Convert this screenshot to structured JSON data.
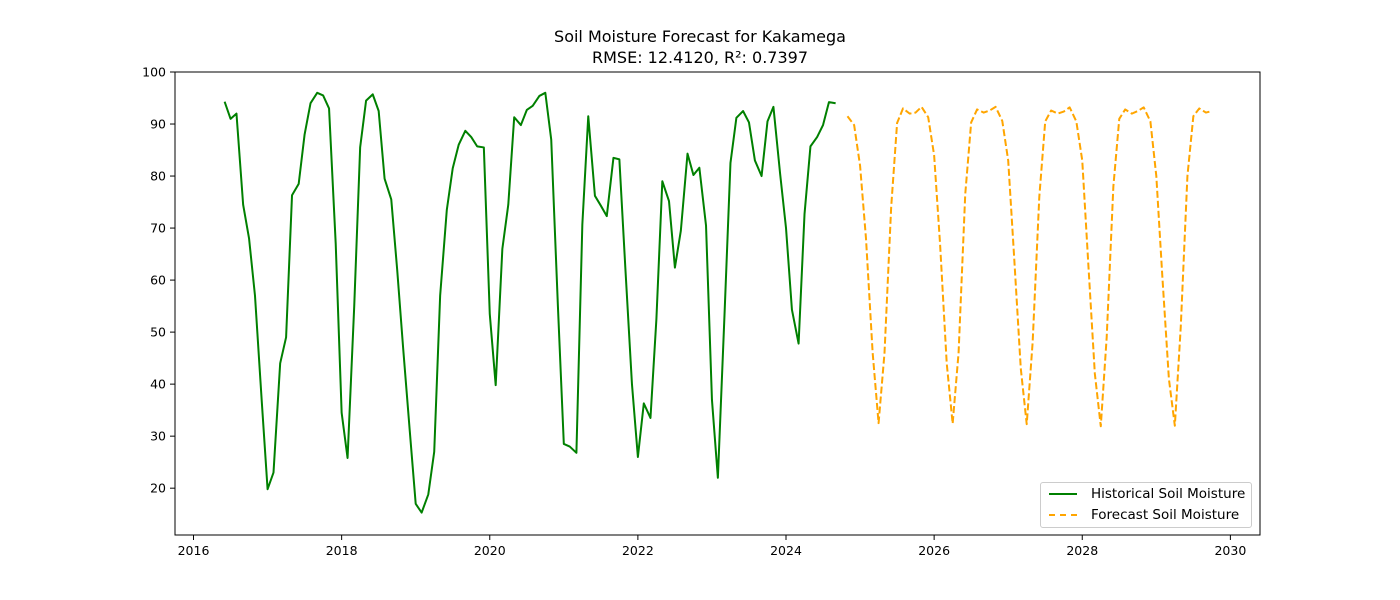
{
  "chart_data": {
    "type": "line",
    "title": "Soil Moisture Forecast for Kakamega",
    "subtitle": "RMSE: 12.4120, R²: 0.7397",
    "xlabel": "",
    "ylabel": "",
    "xlim": [
      2015.75,
      2030.4
    ],
    "ylim": [
      11,
      100
    ],
    "x_ticks": [
      2016,
      2018,
      2020,
      2022,
      2024,
      2026,
      2028,
      2030
    ],
    "y_ticks": [
      20,
      30,
      40,
      50,
      60,
      70,
      80,
      90,
      100
    ],
    "grid": false,
    "legend_position": "lower-right",
    "series": [
      {
        "name": "Historical Soil Moisture",
        "color": "#008000",
        "style": "solid",
        "x": [
          2016.42,
          2016.5,
          2016.58,
          2016.67,
          2016.75,
          2016.83,
          2016.92,
          2017.0,
          2017.08,
          2017.17,
          2017.25,
          2017.33,
          2017.42,
          2017.5,
          2017.58,
          2017.67,
          2017.75,
          2017.83,
          2017.92,
          2018.0,
          2018.08,
          2018.17,
          2018.25,
          2018.33,
          2018.42,
          2018.5,
          2018.58,
          2018.67,
          2018.75,
          2018.83,
          2018.92,
          2019.0,
          2019.08,
          2019.17,
          2019.25,
          2019.33,
          2019.42,
          2019.5,
          2019.58,
          2019.67,
          2019.75,
          2019.83,
          2019.92,
          2020.0,
          2020.08,
          2020.17,
          2020.25,
          2020.33,
          2020.42,
          2020.5,
          2020.58,
          2020.67,
          2020.75,
          2020.83,
          2020.92,
          2021.0,
          2021.08,
          2021.17,
          2021.25,
          2021.33,
          2021.42,
          2021.5,
          2021.58,
          2021.67,
          2021.75,
          2021.83,
          2021.92,
          2022.0,
          2022.08,
          2022.17,
          2022.25,
          2022.33,
          2022.42,
          2022.5,
          2022.58,
          2022.67,
          2022.75,
          2022.83,
          2022.92,
          2023.0,
          2023.08,
          2023.17,
          2023.25,
          2023.33,
          2023.42,
          2023.5,
          2023.58,
          2023.67,
          2023.75,
          2023.83,
          2023.92,
          2024.0,
          2024.08,
          2024.17,
          2024.25,
          2024.33,
          2024.42,
          2024.5,
          2024.58,
          2024.67
        ],
        "y": [
          94.3,
          91.0,
          92.0,
          74.5,
          68.0,
          57.0,
          37.0,
          19.8,
          23.0,
          44.0,
          49.0,
          76.3,
          78.5,
          88.0,
          94.0,
          96.0,
          95.5,
          93.0,
          67.0,
          34.5,
          25.8,
          55.0,
          85.5,
          94.5,
          95.7,
          92.5,
          79.5,
          75.5,
          62.0,
          47.0,
          31.0,
          17.0,
          15.3,
          18.8,
          27.0,
          57.0,
          73.5,
          81.5,
          86.0,
          88.7,
          87.5,
          85.7,
          85.5,
          53.5,
          39.8,
          66.0,
          74.5,
          91.3,
          89.8,
          92.7,
          93.5,
          95.4,
          96.0,
          87.0,
          55.0,
          28.5,
          28.0,
          26.8,
          70.7,
          91.5,
          76.2,
          74.3,
          72.3,
          83.5,
          83.2,
          62.5,
          40.0,
          26.0,
          36.3,
          33.5,
          52.5,
          79.0,
          75.2,
          62.4,
          69.5,
          84.3,
          80.2,
          81.6,
          70.5,
          37.0,
          22.0,
          53.5,
          82.5,
          91.2,
          92.5,
          90.3,
          83.0,
          80.0,
          90.5,
          93.3,
          80.5,
          70.0,
          54.3,
          47.8,
          72.7,
          85.7,
          87.5,
          89.8,
          94.2,
          94.0
        ]
      },
      {
        "name": "Forecast Soil Moisture",
        "color": "#ffa500",
        "style": "dashed",
        "x": [
          2024.83,
          2024.92,
          2025.0,
          2025.08,
          2025.17,
          2025.25,
          2025.33,
          2025.42,
          2025.5,
          2025.58,
          2025.67,
          2025.75,
          2025.83,
          2025.92,
          2026.0,
          2026.08,
          2026.17,
          2026.25,
          2026.33,
          2026.42,
          2026.5,
          2026.58,
          2026.67,
          2026.75,
          2026.83,
          2026.92,
          2027.0,
          2027.08,
          2027.17,
          2027.25,
          2027.33,
          2027.42,
          2027.5,
          2027.58,
          2027.67,
          2027.75,
          2027.83,
          2027.92,
          2028.0,
          2028.08,
          2028.17,
          2028.25,
          2028.33,
          2028.42,
          2028.5,
          2028.58,
          2028.67,
          2028.75,
          2028.83,
          2028.92,
          2029.0,
          2029.08,
          2029.17,
          2029.25,
          2029.33,
          2029.42,
          2029.5,
          2029.58,
          2029.67,
          2029.75
        ],
        "y": [
          91.5,
          89.8,
          82.0,
          68.0,
          46.0,
          32.5,
          46.0,
          74.0,
          90.2,
          93.0,
          92.0,
          92.2,
          93.3,
          91.3,
          84.0,
          67.0,
          44.0,
          32.4,
          46.0,
          76.5,
          90.3,
          92.8,
          92.2,
          92.6,
          93.3,
          90.6,
          83.0,
          64.5,
          43.0,
          32.3,
          48.0,
          76.0,
          90.5,
          92.6,
          92.0,
          92.4,
          93.2,
          90.5,
          83.0,
          63.5,
          42.0,
          31.9,
          49.0,
          78.0,
          91.0,
          92.8,
          92.0,
          92.5,
          93.2,
          90.5,
          80.0,
          61.0,
          41.0,
          32.0,
          51.0,
          80.0,
          91.5,
          93.0,
          92.2,
          92.5
        ]
      }
    ]
  }
}
